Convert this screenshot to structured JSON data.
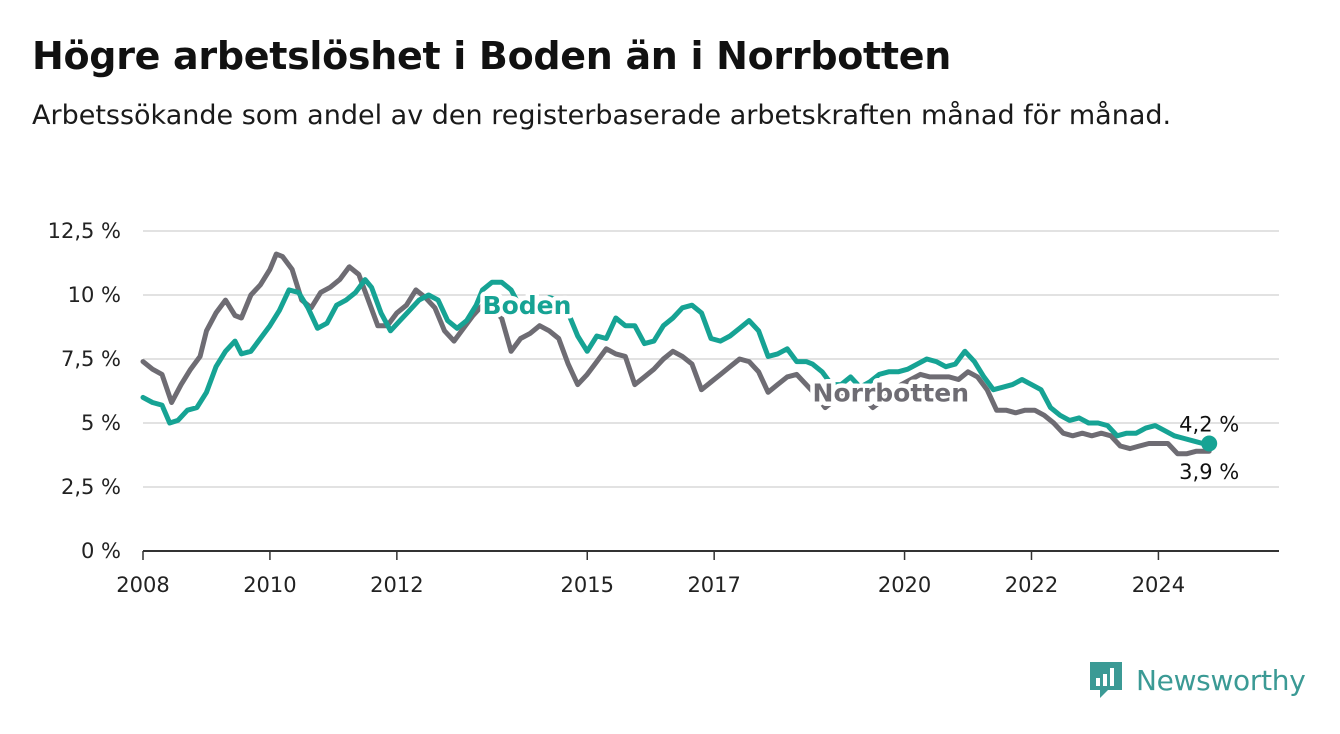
{
  "title": "Högre arbetslöshet i Boden än i Norrbotten",
  "subtitle": "Arbetssökande som andel av den registerbaserade arbetskraften månad för månad.",
  "brand": "Newsworthy",
  "colors": {
    "boden": "#16a394",
    "norrbotten": "#6e6c73",
    "grid": "#d9d9d9",
    "axis": "#333333",
    "brand": "#3b9a95"
  },
  "chart_data": {
    "type": "line",
    "title": "Högre arbetslöshet i Boden än i Norrbotten",
    "subtitle": "Arbetssökande som andel av den registerbaserade arbetskraften månad för månad.",
    "xlabel": "",
    "ylabel": "",
    "xlim": [
      2008,
      2025.9
    ],
    "ylim": [
      0,
      12.5
    ],
    "x_ticks": [
      "2008",
      "2010",
      "2012",
      "2015",
      "2017",
      "2020",
      "2022",
      "2024"
    ],
    "y_ticks": [
      "0 %",
      "2,5 %",
      "5 %",
      "7,5 %",
      "10 %",
      "12,5 %"
    ],
    "grid": true,
    "legend": "inline labels",
    "series": [
      {
        "name": "Boden",
        "end_label": "4,2 %",
        "points": [
          [
            2008.0,
            6.0
          ],
          [
            2008.15,
            5.8
          ],
          [
            2008.3,
            5.7
          ],
          [
            2008.42,
            5.0
          ],
          [
            2008.55,
            5.1
          ],
          [
            2008.7,
            5.5
          ],
          [
            2008.85,
            5.6
          ],
          [
            2009.0,
            6.2
          ],
          [
            2009.15,
            7.2
          ],
          [
            2009.3,
            7.8
          ],
          [
            2009.45,
            8.2
          ],
          [
            2009.55,
            7.7
          ],
          [
            2009.7,
            7.8
          ],
          [
            2009.85,
            8.3
          ],
          [
            2010.0,
            8.8
          ],
          [
            2010.15,
            9.4
          ],
          [
            2010.3,
            10.2
          ],
          [
            2010.45,
            10.1
          ],
          [
            2010.6,
            9.5
          ],
          [
            2010.75,
            8.7
          ],
          [
            2010.9,
            8.9
          ],
          [
            2011.05,
            9.6
          ],
          [
            2011.2,
            9.8
          ],
          [
            2011.35,
            10.1
          ],
          [
            2011.5,
            10.6
          ],
          [
            2011.6,
            10.3
          ],
          [
            2011.75,
            9.3
          ],
          [
            2011.9,
            8.6
          ],
          [
            2012.05,
            9.0
          ],
          [
            2012.2,
            9.4
          ],
          [
            2012.35,
            9.8
          ],
          [
            2012.5,
            10.0
          ],
          [
            2012.65,
            9.8
          ],
          [
            2012.8,
            9.0
          ],
          [
            2012.95,
            8.7
          ],
          [
            2013.1,
            9.0
          ],
          [
            2013.25,
            9.6
          ],
          [
            2013.35,
            10.2
          ],
          [
            2013.5,
            10.5
          ],
          [
            2013.65,
            10.5
          ],
          [
            2013.8,
            10.2
          ],
          [
            2013.95,
            9.5
          ],
          [
            2014.1,
            9.2
          ],
          [
            2014.25,
            9.5
          ],
          [
            2014.4,
            9.9
          ],
          [
            2014.55,
            9.8
          ],
          [
            2014.7,
            9.3
          ],
          [
            2014.85,
            8.4
          ],
          [
            2015.0,
            7.8
          ],
          [
            2015.15,
            8.4
          ],
          [
            2015.3,
            8.3
          ],
          [
            2015.45,
            9.1
          ],
          [
            2015.6,
            8.8
          ],
          [
            2015.75,
            8.8
          ],
          [
            2015.9,
            8.1
          ],
          [
            2016.05,
            8.2
          ],
          [
            2016.2,
            8.8
          ],
          [
            2016.35,
            9.1
          ],
          [
            2016.5,
            9.5
          ],
          [
            2016.65,
            9.6
          ],
          [
            2016.8,
            9.3
          ],
          [
            2016.95,
            8.3
          ],
          [
            2017.1,
            8.2
          ],
          [
            2017.25,
            8.4
          ],
          [
            2017.4,
            8.7
          ],
          [
            2017.55,
            9.0
          ],
          [
            2017.7,
            8.6
          ],
          [
            2017.85,
            7.6
          ],
          [
            2018.0,
            7.7
          ],
          [
            2018.15,
            7.9
          ],
          [
            2018.3,
            7.4
          ],
          [
            2018.45,
            7.4
          ],
          [
            2018.55,
            7.3
          ],
          [
            2018.7,
            7.0
          ],
          [
            2018.85,
            6.5
          ],
          [
            2019.0,
            6.5
          ],
          [
            2019.15,
            6.8
          ],
          [
            2019.3,
            6.4
          ],
          [
            2019.45,
            6.6
          ],
          [
            2019.6,
            6.9
          ],
          [
            2019.75,
            7.0
          ],
          [
            2019.9,
            7.0
          ],
          [
            2020.05,
            7.1
          ],
          [
            2020.2,
            7.3
          ],
          [
            2020.35,
            7.5
          ],
          [
            2020.5,
            7.4
          ],
          [
            2020.65,
            7.2
          ],
          [
            2020.8,
            7.3
          ],
          [
            2020.95,
            7.8
          ],
          [
            2021.1,
            7.4
          ],
          [
            2021.25,
            6.8
          ],
          [
            2021.4,
            6.3
          ],
          [
            2021.55,
            6.4
          ],
          [
            2021.7,
            6.5
          ],
          [
            2021.85,
            6.7
          ],
          [
            2022.0,
            6.5
          ],
          [
            2022.15,
            6.3
          ],
          [
            2022.3,
            5.6
          ],
          [
            2022.45,
            5.3
          ],
          [
            2022.6,
            5.1
          ],
          [
            2022.75,
            5.2
          ],
          [
            2022.9,
            5.0
          ],
          [
            2023.05,
            5.0
          ],
          [
            2023.2,
            4.9
          ],
          [
            2023.35,
            4.5
          ],
          [
            2023.5,
            4.6
          ],
          [
            2023.65,
            4.6
          ],
          [
            2023.8,
            4.8
          ],
          [
            2023.95,
            4.9
          ],
          [
            2024.1,
            4.7
          ],
          [
            2024.25,
            4.5
          ],
          [
            2024.4,
            4.4
          ],
          [
            2024.55,
            4.3
          ],
          [
            2024.7,
            4.2
          ],
          [
            2024.8,
            4.2
          ]
        ]
      },
      {
        "name": "Norrbotten",
        "end_label": "3,9 %",
        "points": [
          [
            2008.0,
            7.4
          ],
          [
            2008.15,
            7.1
          ],
          [
            2008.3,
            6.9
          ],
          [
            2008.45,
            5.8
          ],
          [
            2008.6,
            6.5
          ],
          [
            2008.75,
            7.1
          ],
          [
            2008.9,
            7.6
          ],
          [
            2009.0,
            8.6
          ],
          [
            2009.15,
            9.3
          ],
          [
            2009.3,
            9.8
          ],
          [
            2009.45,
            9.2
          ],
          [
            2009.55,
            9.1
          ],
          [
            2009.7,
            10.0
          ],
          [
            2009.85,
            10.4
          ],
          [
            2010.0,
            11.0
          ],
          [
            2010.1,
            11.6
          ],
          [
            2010.2,
            11.5
          ],
          [
            2010.35,
            11.0
          ],
          [
            2010.5,
            9.8
          ],
          [
            2010.65,
            9.5
          ],
          [
            2010.8,
            10.1
          ],
          [
            2010.95,
            10.3
          ],
          [
            2011.1,
            10.6
          ],
          [
            2011.25,
            11.1
          ],
          [
            2011.4,
            10.8
          ],
          [
            2011.55,
            9.8
          ],
          [
            2011.7,
            8.8
          ],
          [
            2011.85,
            8.8
          ],
          [
            2012.0,
            9.3
          ],
          [
            2012.15,
            9.6
          ],
          [
            2012.3,
            10.2
          ],
          [
            2012.45,
            9.9
          ],
          [
            2012.6,
            9.5
          ],
          [
            2012.75,
            8.6
          ],
          [
            2012.9,
            8.2
          ],
          [
            2013.05,
            8.7
          ],
          [
            2013.2,
            9.2
          ],
          [
            2013.35,
            9.6
          ],
          [
            2013.5,
            9.5
          ],
          [
            2013.65,
            9.1
          ],
          [
            2013.8,
            7.8
          ],
          [
            2013.95,
            8.3
          ],
          [
            2014.1,
            8.5
          ],
          [
            2014.25,
            8.8
          ],
          [
            2014.4,
            8.6
          ],
          [
            2014.55,
            8.3
          ],
          [
            2014.7,
            7.3
          ],
          [
            2014.85,
            6.5
          ],
          [
            2015.0,
            6.9
          ],
          [
            2015.15,
            7.4
          ],
          [
            2015.3,
            7.9
          ],
          [
            2015.45,
            7.7
          ],
          [
            2015.6,
            7.6
          ],
          [
            2015.75,
            6.5
          ],
          [
            2015.9,
            6.8
          ],
          [
            2016.05,
            7.1
          ],
          [
            2016.2,
            7.5
          ],
          [
            2016.35,
            7.8
          ],
          [
            2016.5,
            7.6
          ],
          [
            2016.65,
            7.3
          ],
          [
            2016.8,
            6.3
          ],
          [
            2016.95,
            6.6
          ],
          [
            2017.1,
            6.9
          ],
          [
            2017.25,
            7.2
          ],
          [
            2017.4,
            7.5
          ],
          [
            2017.55,
            7.4
          ],
          [
            2017.7,
            7.0
          ],
          [
            2017.85,
            6.2
          ],
          [
            2018.0,
            6.5
          ],
          [
            2018.15,
            6.8
          ],
          [
            2018.3,
            6.9
          ],
          [
            2018.45,
            6.5
          ],
          [
            2018.6,
            6.1
          ],
          [
            2018.75,
            5.6
          ],
          [
            2018.9,
            5.9
          ],
          [
            2019.05,
            6.1
          ],
          [
            2019.2,
            6.4
          ],
          [
            2019.35,
            6.0
          ],
          [
            2019.5,
            5.6
          ],
          [
            2019.65,
            5.9
          ],
          [
            2019.8,
            6.2
          ],
          [
            2019.95,
            6.5
          ],
          [
            2020.1,
            6.7
          ],
          [
            2020.25,
            6.9
          ],
          [
            2020.4,
            6.8
          ],
          [
            2020.55,
            6.8
          ],
          [
            2020.7,
            6.8
          ],
          [
            2020.85,
            6.7
          ],
          [
            2021.0,
            7.0
          ],
          [
            2021.15,
            6.8
          ],
          [
            2021.3,
            6.3
          ],
          [
            2021.45,
            5.5
          ],
          [
            2021.6,
            5.5
          ],
          [
            2021.75,
            5.4
          ],
          [
            2021.9,
            5.5
          ],
          [
            2022.05,
            5.5
          ],
          [
            2022.2,
            5.3
          ],
          [
            2022.35,
            5.0
          ],
          [
            2022.5,
            4.6
          ],
          [
            2022.65,
            4.5
          ],
          [
            2022.8,
            4.6
          ],
          [
            2022.95,
            4.5
          ],
          [
            2023.1,
            4.6
          ],
          [
            2023.25,
            4.5
          ],
          [
            2023.4,
            4.1
          ],
          [
            2023.55,
            4.0
          ],
          [
            2023.7,
            4.1
          ],
          [
            2023.85,
            4.2
          ],
          [
            2024.0,
            4.2
          ],
          [
            2024.15,
            4.2
          ],
          [
            2024.3,
            3.8
          ],
          [
            2024.45,
            3.8
          ],
          [
            2024.6,
            3.9
          ],
          [
            2024.8,
            3.9
          ]
        ]
      }
    ],
    "annotations": [
      "4,2 %",
      "3,9 %"
    ]
  }
}
